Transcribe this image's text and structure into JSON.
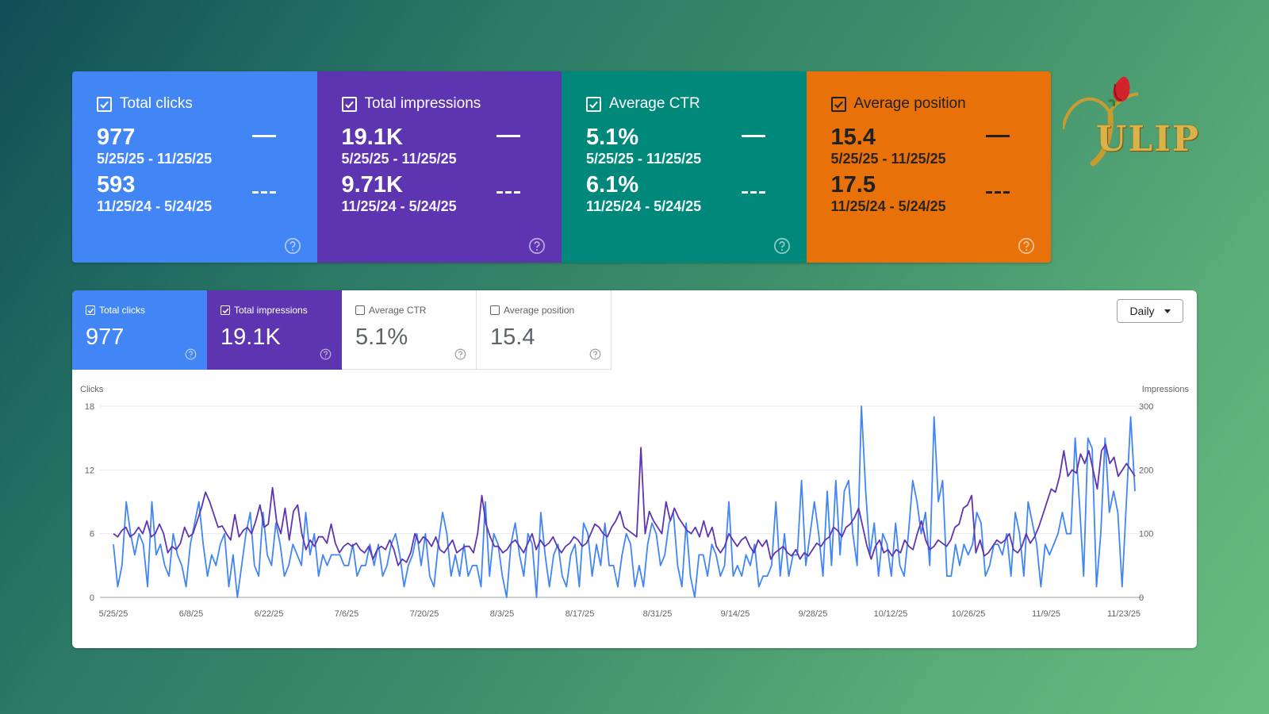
{
  "cards": [
    {
      "id": "clicks",
      "title": "Total clicks",
      "current": "977",
      "current_range": "5/25/25 - 11/25/25",
      "previous": "593",
      "previous_range": "11/25/24 - 5/24/25",
      "bg": "#4285f4",
      "text_color": "#ffffff"
    },
    {
      "id": "impressions",
      "title": "Total impressions",
      "current": "19.1K",
      "current_range": "5/25/25 - 11/25/25",
      "previous": "9.71K",
      "previous_range": "11/25/24 - 5/24/25",
      "bg": "#5e35b1",
      "text_color": "#ffffff"
    },
    {
      "id": "ctr",
      "title": "Average CTR",
      "current": "5.1%",
      "current_range": "5/25/25 - 11/25/25",
      "previous": "6.1%",
      "previous_range": "11/25/24 - 5/24/25",
      "bg": "#00897b",
      "text_color": "#ffffff"
    },
    {
      "id": "position",
      "title": "Average position",
      "current": "15.4",
      "current_range": "5/25/25 - 11/25/25",
      "previous": "17.5",
      "previous_range": "11/25/24 - 5/24/25",
      "bg": "#e8710a",
      "text_color": "#202124"
    }
  ],
  "logo": {
    "text": "ULIP",
    "icon": "tulip-icon",
    "color": "#d9b34a"
  },
  "tabs": [
    {
      "label": "Total clicks",
      "value": "977",
      "checked": true
    },
    {
      "label": "Total impressions",
      "value": "19.1K",
      "checked": true
    },
    {
      "label": "Average CTR",
      "value": "5.1%",
      "checked": false
    },
    {
      "label": "Average position",
      "value": "15.4",
      "checked": false
    }
  ],
  "granularity": {
    "label": "Daily"
  },
  "chart_data": {
    "type": "line",
    "left_axis": {
      "label": "Clicks",
      "ticks": [
        "0",
        "6",
        "12",
        "18"
      ],
      "range": [
        0,
        18
      ]
    },
    "right_axis": {
      "label": "Impressions",
      "ticks": [
        "0",
        "100",
        "200",
        "300"
      ],
      "range": [
        0,
        300
      ]
    },
    "x_tick_labels": [
      "5/25/25",
      "6/8/25",
      "6/22/25",
      "7/6/25",
      "7/20/25",
      "8/3/25",
      "8/17/25",
      "8/31/25",
      "9/14/25",
      "9/28/25",
      "10/12/25",
      "10/26/25",
      "11/9/25",
      "11/23/25"
    ],
    "x_range": [
      "5/24/25",
      "11/25/25"
    ],
    "grid": true,
    "series": [
      {
        "name": "Clicks",
        "axis": "left",
        "color": "#4285f4",
        "values": [
          5,
          1,
          3,
          9,
          6,
          4,
          6,
          5,
          1,
          9,
          4,
          5,
          3,
          2,
          6,
          4,
          3,
          1,
          5,
          7,
          9,
          5,
          2,
          4,
          3,
          5,
          6,
          1,
          4,
          0,
          3,
          6,
          8,
          3,
          2,
          8,
          4,
          3,
          7,
          5,
          2,
          3,
          5,
          4,
          3,
          8,
          4,
          6,
          2,
          4,
          3,
          4,
          4,
          4,
          3,
          3,
          5,
          2,
          3,
          3,
          5,
          3,
          5,
          2,
          3,
          5,
          6,
          4,
          1,
          3,
          4,
          6,
          3,
          6,
          2,
          1,
          5,
          8,
          6,
          2,
          4,
          2,
          5,
          2,
          3,
          3,
          1,
          9,
          2,
          6,
          5,
          2,
          0,
          5,
          7,
          4,
          2,
          6,
          5,
          0,
          8,
          4,
          1,
          4,
          5,
          2,
          1,
          4,
          5,
          1,
          7,
          6,
          2,
          5,
          3,
          7,
          3,
          3,
          1,
          4,
          6,
          5,
          1,
          3,
          1,
          5,
          7,
          6,
          3,
          4,
          7,
          8,
          3,
          1,
          7,
          2,
          0,
          4,
          4,
          2,
          5,
          4,
          2,
          3,
          9,
          2,
          3,
          2,
          4,
          3,
          5,
          1,
          2,
          2,
          3,
          9,
          2,
          6,
          2,
          4,
          4,
          11,
          3,
          6,
          9,
          6,
          2,
          10,
          3,
          11,
          4,
          10,
          11,
          6,
          3,
          18,
          10,
          4,
          7,
          2,
          6,
          5,
          2,
          7,
          3,
          2,
          6,
          11,
          9,
          6,
          8,
          3,
          17,
          9,
          11,
          2,
          2,
          5,
          3,
          5,
          4,
          5,
          8,
          7,
          2,
          3,
          5,
          5,
          4,
          6,
          2,
          8,
          6,
          2,
          9,
          7,
          5,
          1,
          5,
          4,
          5,
          6,
          8,
          6,
          6,
          15,
          9,
          2,
          15,
          14,
          1,
          6,
          15,
          8,
          10,
          8,
          1,
          9,
          17,
          10
        ]
      },
      {
        "name": "Impressions",
        "axis": "right",
        "color": "#5e35b1",
        "values": [
          100,
          95,
          105,
          110,
          95,
          100,
          110,
          100,
          120,
          95,
          100,
          115,
          100,
          70,
          80,
          75,
          85,
          110,
          95,
          100,
          120,
          140,
          165,
          150,
          130,
          110,
          112,
          100,
          90,
          130,
          95,
          105,
          110,
          100,
          120,
          145,
          110,
          115,
          172,
          118,
          100,
          140,
          90,
          135,
          145,
          100,
          75,
          90,
          80,
          95,
          95,
          85,
          115,
          85,
          70,
          80,
          85,
          80,
          85,
          75,
          70,
          80,
          60,
          75,
          80,
          75,
          90,
          75,
          50,
          60,
          55,
          70,
          100,
          85,
          95,
          90,
          80,
          95,
          75,
          70,
          80,
          90,
          70,
          75,
          80,
          80,
          70,
          100,
          160,
          115,
          95,
          80,
          80,
          70,
          75,
          85,
          90,
          80,
          70,
          85,
          100,
          75,
          90,
          80,
          85,
          95,
          80,
          70,
          80,
          85,
          95,
          90,
          80,
          85,
          100,
          115,
          110,
          100,
          95,
          110,
          120,
          135,
          110,
          105,
          100,
          95,
          235,
          100,
          135,
          120,
          110,
          100,
          150,
          120,
          140,
          125,
          115,
          105,
          100,
          110,
          95,
          120,
          95,
          110,
          80,
          70,
          80,
          100,
          90,
          80,
          90,
          95,
          80,
          70,
          90,
          80,
          90,
          60,
          70,
          75,
          80,
          70,
          65,
          75,
          60,
          70,
          65,
          75,
          85,
          80,
          90,
          95,
          110,
          105,
          95,
          110,
          115,
          125,
          140,
          110,
          80,
          60,
          80,
          90,
          70,
          75,
          65,
          75,
          70,
          90,
          80,
          75,
          100,
          120,
          90,
          75,
          80,
          90,
          85,
          80,
          90,
          110,
          115,
          140,
          145,
          160,
          70,
          90,
          65,
          70,
          80,
          90,
          85,
          90,
          100,
          75,
          70,
          80,
          100,
          85,
          95,
          110,
          130,
          150,
          170,
          165,
          190,
          230,
          190,
          200,
          195,
          225,
          210,
          230,
          200,
          170,
          230,
          240,
          210,
          220,
          190,
          200,
          210,
          200,
          190
        ]
      }
    ]
  }
}
